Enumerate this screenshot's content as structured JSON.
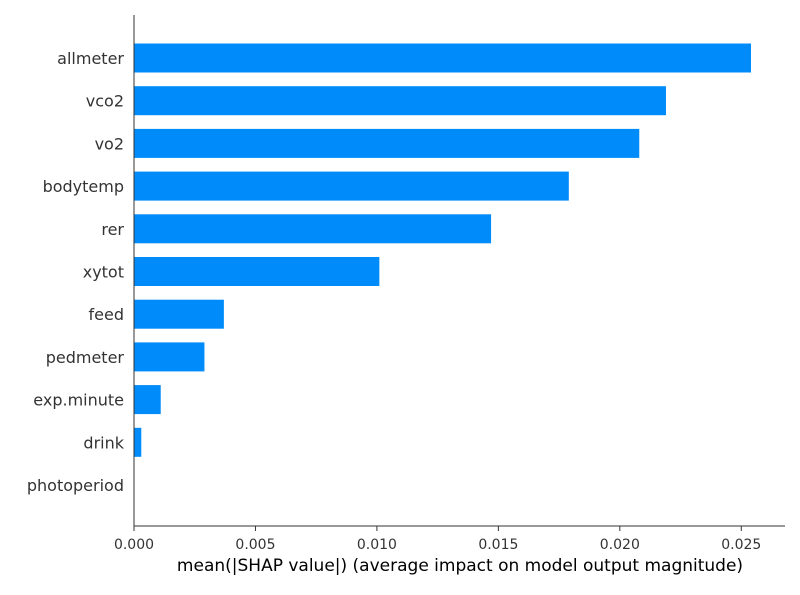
{
  "chart_data": {
    "type": "bar",
    "orientation": "horizontal",
    "title": "",
    "xlabel": "mean(|SHAP value|) (average impact on model output magnitude)",
    "ylabel": "",
    "categories": [
      "allmeter",
      "vco2",
      "vo2",
      "bodytemp",
      "rer",
      "xytot",
      "feed",
      "pedmeter",
      "exp.minute",
      "drink",
      "photoperiod"
    ],
    "values": [
      0.0254,
      0.0219,
      0.0208,
      0.0179,
      0.0147,
      0.0101,
      0.0037,
      0.0029,
      0.0011,
      0.0003,
      0.0
    ],
    "xlim": [
      0.0,
      0.0268
    ],
    "xticks": [
      "0.000",
      "0.005",
      "0.010",
      "0.015",
      "0.020",
      "0.025"
    ],
    "bar_color": "#008bfb",
    "grid": false,
    "legend": "none"
  }
}
